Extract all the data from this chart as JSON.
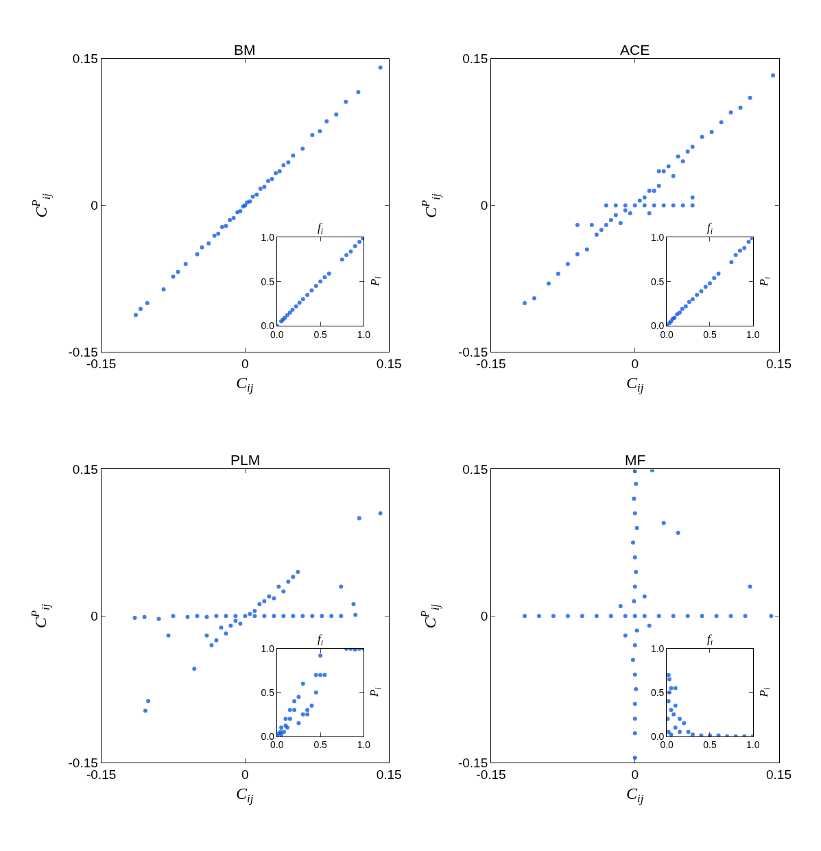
{
  "chart_data": [
    {
      "type": "scatter",
      "title": "BM",
      "xlabel": "C$_{ij}$",
      "ylabel": "C$^{P}$$_{ij}$",
      "xlim": [
        -0.15,
        0.15
      ],
      "ylim": [
        -0.15,
        0.15
      ],
      "xticks": [
        -0.15,
        0,
        0.15
      ],
      "yticks": [
        -0.15,
        0,
        0.15
      ],
      "marker": "circle",
      "color": "#0050e6",
      "x": [
        -0.114,
        -0.109,
        -0.102,
        -0.085,
        -0.075,
        -0.07,
        -0.062,
        -0.05,
        -0.045,
        -0.038,
        -0.032,
        -0.028,
        -0.024,
        -0.02,
        -0.016,
        -0.012,
        -0.008,
        -0.005,
        -0.002,
        0,
        0.002,
        0.005,
        0.008,
        0.012,
        0.016,
        0.02,
        0.024,
        0.028,
        0.032,
        0.036,
        0.04,
        0.045,
        0.05,
        0.06,
        0.07,
        0.078,
        0.085,
        0.095,
        0.105,
        0.118,
        0.141
      ],
      "values": [
        -0.112,
        -0.106,
        -0.1,
        -0.086,
        -0.073,
        -0.068,
        -0.06,
        -0.05,
        -0.043,
        -0.039,
        -0.031,
        -0.029,
        -0.022,
        -0.021,
        -0.015,
        -0.013,
        -0.007,
        -0.006,
        -0.001,
        0,
        0.003,
        0.004,
        0.009,
        0.011,
        0.017,
        0.019,
        0.025,
        0.027,
        0.033,
        0.035,
        0.041,
        0.044,
        0.051,
        0.058,
        0.072,
        0.076,
        0.086,
        0.093,
        0.106,
        0.116,
        0.141
      ]
    },
    {
      "type": "scatter",
      "xlabel": "f$_{i}$",
      "ylabel": "P$_{i}$",
      "xlim": [
        0,
        1
      ],
      "ylim": [
        0,
        1
      ],
      "xticks": [
        {
          "value": 0,
          "label": "0.0"
        },
        {
          "value": 0.5,
          "label": "0.5"
        },
        {
          "value": 1,
          "label": "1.0"
        }
      ],
      "yticks": [
        {
          "value": 0,
          "label": "0.0"
        },
        {
          "value": 0.5,
          "label": "0.5"
        },
        {
          "value": 1,
          "label": "1.0"
        }
      ],
      "marker": "circle",
      "color": "#0050e6",
      "x": [
        0.0,
        0.05,
        0.07,
        0.09,
        0.12,
        0.15,
        0.18,
        0.22,
        0.26,
        0.3,
        0.35,
        0.4,
        0.45,
        0.5,
        0.55,
        0.6,
        0.75,
        0.8,
        0.85,
        0.9,
        0.95,
        0.99
      ],
      "values": [
        0.0,
        0.05,
        0.07,
        0.09,
        0.12,
        0.15,
        0.18,
        0.22,
        0.26,
        0.3,
        0.35,
        0.4,
        0.45,
        0.5,
        0.55,
        0.59,
        0.75,
        0.8,
        0.84,
        0.9,
        0.95,
        0.99
      ]
    },
    {
      "type": "scatter",
      "title": "ACE",
      "xlabel": "C$_{ij}$",
      "ylabel": "C$^{P}$$_{ij}$",
      "xlim": [
        -0.15,
        0.15
      ],
      "ylim": [
        -0.15,
        0.15
      ],
      "xticks": [
        -0.15,
        0,
        0.15
      ],
      "yticks": [
        -0.15,
        0,
        0.15
      ],
      "marker": "circle",
      "color": "#0050e6",
      "x": [
        -0.115,
        -0.105,
        -0.09,
        -0.08,
        -0.07,
        -0.06,
        -0.05,
        -0.045,
        -0.06,
        -0.04,
        -0.035,
        -0.03,
        -0.025,
        -0.02,
        -0.03,
        -0.02,
        -0.01,
        -0.015,
        -0.01,
        -0.005,
        0,
        0.005,
        0.01,
        0.015,
        0.02,
        0.025,
        0.01,
        0.02,
        0.03,
        0.04,
        0.05,
        0.06,
        0.03,
        0.035,
        0.04,
        0.045,
        0.05,
        0.055,
        0.06,
        0.07,
        0.08,
        0.09,
        0.1,
        0.11,
        0.12,
        0.144,
        0.025,
        0.015,
        0.06
      ],
      "values": [
        -0.1,
        -0.095,
        -0.08,
        -0.07,
        -0.06,
        -0.05,
        -0.045,
        -0.02,
        -0.02,
        -0.03,
        -0.025,
        -0.02,
        -0.015,
        -0.01,
        0,
        0,
        0,
        -0.018,
        -0.005,
        -0.008,
        0,
        0.005,
        0.008,
        0.015,
        0.015,
        0.02,
        0,
        0,
        0,
        0,
        0,
        0,
        0.035,
        0.04,
        0.03,
        0.05,
        0.045,
        0.055,
        0.06,
        0.07,
        0.075,
        0.085,
        0.095,
        0.1,
        0.11,
        0.133,
        0.035,
        -0.008,
        0.008
      ]
    },
    {
      "type": "scatter",
      "xlabel": "f$_{i}$",
      "ylabel": "P$_{i}$",
      "xlim": [
        0,
        1
      ],
      "ylim": [
        0,
        1
      ],
      "xticks": [
        {
          "value": 0,
          "label": "0.0"
        },
        {
          "value": 0.5,
          "label": "0.5"
        },
        {
          "value": 1,
          "label": "1.0"
        }
      ],
      "yticks": [
        {
          "value": 0,
          "label": "0.0"
        },
        {
          "value": 0.5,
          "label": "0.5"
        },
        {
          "value": 1,
          "label": "1.0"
        }
      ],
      "marker": "circle",
      "color": "#0050e6",
      "x": [
        0.0,
        0.03,
        0.05,
        0.07,
        0.09,
        0.12,
        0.15,
        0.18,
        0.22,
        0.26,
        0.3,
        0.35,
        0.4,
        0.45,
        0.5,
        0.55,
        0.6,
        0.75,
        0.8,
        0.85,
        0.9,
        0.95,
        0.99
      ],
      "values": [
        0.0,
        0.03,
        0.05,
        0.08,
        0.09,
        0.13,
        0.15,
        0.19,
        0.22,
        0.27,
        0.3,
        0.35,
        0.39,
        0.44,
        0.48,
        0.54,
        0.59,
        0.72,
        0.8,
        0.85,
        0.88,
        0.95,
        0.99
      ]
    },
    {
      "type": "scatter",
      "title": "PLM",
      "xlabel": "C$_{ij}$",
      "ylabel": "C$^{P}$$_{ij}$",
      "xlim": [
        -0.15,
        0.15
      ],
      "ylim": [
        -0.15,
        0.15
      ],
      "xticks": [
        -0.15,
        0,
        0.15
      ],
      "yticks": [
        -0.15,
        0,
        0.15
      ],
      "marker": "circle",
      "color": "#0050e6",
      "x": [
        -0.115,
        -0.105,
        -0.09,
        -0.075,
        -0.06,
        -0.05,
        -0.04,
        -0.03,
        -0.02,
        -0.01,
        0,
        0.01,
        0.02,
        0.03,
        0.04,
        0.05,
        0.06,
        0.07,
        0.08,
        0.09,
        0.1,
        0.115,
        -0.101,
        -0.104,
        -0.053,
        -0.08,
        -0.04,
        -0.03,
        -0.02,
        -0.015,
        -0.01,
        -0.005,
        0.005,
        0.01,
        0.015,
        0.02,
        0.025,
        0.03,
        0.035,
        0.04,
        0.045,
        0.05,
        0.055,
        0.1,
        0.141,
        0.119,
        0.113,
        -0.035,
        -0.025
      ],
      "values": [
        -0.002,
        -0.001,
        -0.003,
        0,
        -0.001,
        0,
        -0.001,
        0,
        0,
        0,
        0,
        0,
        0,
        0,
        0,
        0,
        0,
        0,
        0,
        0,
        0,
        0.001,
        -0.087,
        -0.097,
        -0.054,
        -0.02,
        -0.02,
        -0.025,
        -0.018,
        -0.01,
        -0.005,
        -0.008,
        0.002,
        0.005,
        0.012,
        0.015,
        0.02,
        0.018,
        0.03,
        0.025,
        0.035,
        0.04,
        0.045,
        0.03,
        0.105,
        0.1,
        0.012,
        -0.03,
        -0.012
      ]
    },
    {
      "type": "scatter",
      "xlabel": "f$_{i}$",
      "ylabel": "P$_{i}$",
      "xlim": [
        0,
        1
      ],
      "ylim": [
        0,
        1
      ],
      "xticks": [
        {
          "value": 0,
          "label": "0.0"
        },
        {
          "value": 0.5,
          "label": "0.5"
        },
        {
          "value": 1,
          "label": "1.0"
        }
      ],
      "yticks": [
        {
          "value": 0,
          "label": "0.0"
        },
        {
          "value": 0.5,
          "label": "0.5"
        },
        {
          "value": 1,
          "label": "1.0"
        }
      ],
      "marker": "circle",
      "color": "#0050e6",
      "x": [
        0.0,
        0.02,
        0.04,
        0.05,
        0.08,
        0.1,
        0.12,
        0.15,
        0.2,
        0.25,
        0.3,
        0.35,
        0.4,
        0.45,
        0.5,
        0.45,
        0.3,
        0.2,
        0.15,
        0.1,
        0.05,
        0.5,
        0.8,
        0.85,
        0.9,
        0.95,
        1.0,
        0.25,
        0.35,
        0.55
      ],
      "values": [
        0.0,
        0.03,
        0.05,
        0.1,
        0.05,
        0.12,
        0.1,
        0.2,
        0.3,
        0.45,
        0.6,
        0.3,
        0.35,
        0.5,
        0.7,
        0.7,
        0.25,
        0.4,
        0.3,
        0.2,
        0.02,
        0.92,
        1.0,
        1.0,
        0.99,
        1.0,
        1.0,
        0.15,
        0.25,
        0.7
      ]
    },
    {
      "type": "scatter",
      "title": "MF",
      "xlabel": "C$_{ij}$",
      "ylabel": "C$^{P}$$_{ij}$",
      "xlim": [
        -0.15,
        0.15
      ],
      "ylim": [
        -0.15,
        0.15
      ],
      "xticks": [
        -0.15,
        0,
        0.15
      ],
      "yticks": [
        -0.15,
        0,
        0.15
      ],
      "marker": "circle",
      "color": "#0050e6",
      "x": [
        0,
        0.001,
        -0.001,
        0,
        0.002,
        -0.002,
        0,
        0.001,
        0,
        -0.001,
        0,
        0.002,
        0,
        -0.002,
        0,
        0.001,
        0,
        0,
        0,
        0,
        -0.115,
        -0.1,
        -0.085,
        -0.07,
        -0.055,
        -0.04,
        -0.025,
        -0.01,
        0.01,
        0.025,
        0.04,
        0.055,
        0.07,
        0.085,
        0.1,
        0.115,
        0.142,
        0.03,
        0.045,
        0.12,
        0.018,
        0.01,
        -0.01,
        0.015,
        -0.015
      ],
      "values": [
        0.148,
        0.135,
        0.12,
        0.105,
        0.09,
        0.075,
        0.06,
        0.045,
        0.03,
        0.015,
        0,
        -0.015,
        -0.03,
        -0.045,
        -0.06,
        -0.075,
        -0.09,
        -0.105,
        -0.12,
        -0.145,
        0,
        0,
        0,
        0,
        0,
        0,
        0,
        0,
        0,
        0,
        0,
        0,
        0,
        0,
        0,
        0,
        0,
        0.095,
        0.085,
        0.03,
        0.149,
        0.02,
        -0.02,
        -0.01,
        0.01
      ]
    },
    {
      "type": "scatter",
      "xlabel": "f$_{i}$",
      "ylabel": "P$_{i}$",
      "xlim": [
        0,
        1
      ],
      "ylim": [
        0,
        1
      ],
      "xticks": [
        {
          "value": 0,
          "label": "0.0"
        },
        {
          "value": 0.5,
          "label": "0.5"
        },
        {
          "value": 1,
          "label": "1.0"
        }
      ],
      "yticks": [
        {
          "value": 0,
          "label": "0.0"
        },
        {
          "value": 0.5,
          "label": "0.5"
        },
        {
          "value": 1,
          "label": "1.0"
        }
      ],
      "marker": "circle",
      "color": "#0050e6",
      "x": [
        0.02,
        0.03,
        0.05,
        0.1,
        0.03,
        0.02,
        0.1,
        0.05,
        0.15,
        0.2,
        0.1,
        0.25,
        0.3,
        0.5,
        0.7,
        0.9,
        1.0,
        0.02,
        0.05,
        0.15,
        0.01,
        0.08,
        0.4,
        0.6,
        0.8
      ],
      "values": [
        0.7,
        0.65,
        0.55,
        0.55,
        0.5,
        0.4,
        0.35,
        0.3,
        0.2,
        0.15,
        0.1,
        0.05,
        0.02,
        0.01,
        0,
        0,
        0,
        0.05,
        0.02,
        0.05,
        0.2,
        0.25,
        0.01,
        0.01,
        0
      ]
    }
  ]
}
